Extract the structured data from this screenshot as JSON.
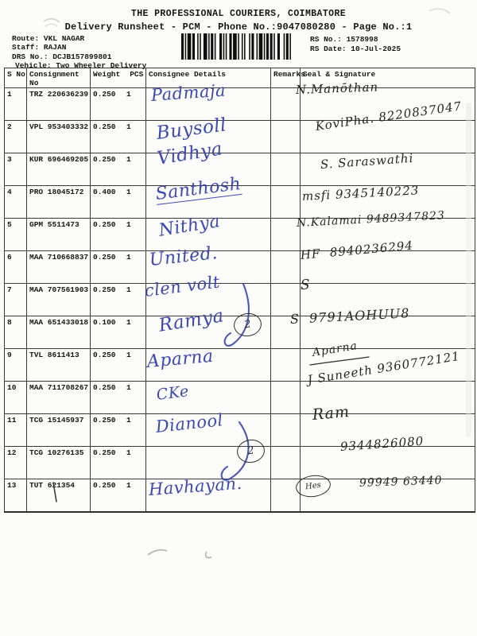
{
  "document": {
    "title": "THE PROFESSIONAL COURIERS, COIMBATORE",
    "subtitle": "Delivery Runsheet - PCM - Phone No.:9047080280 - Page No.:1",
    "route": "Route: VKL NAGAR",
    "staff": "Staff: RAJAN",
    "drs_no": "DRS No.: DCJB157899801",
    "vehicle": "Vehicle: Two Wheeler Delivery",
    "rs_no": "RS No.: 1578998",
    "rs_date": "RS Date: 10-Jul-2025"
  },
  "table": {
    "headers": {
      "s_no": "S No",
      "consignment_no": "Consignment No",
      "weight": "Weight",
      "pcs": "PCS",
      "consignee": "Consignee Details",
      "remarks": "Remarks",
      "seal": "Seal & Signature"
    },
    "rows": [
      {
        "s_no": "1",
        "consignment_no": "TRZ 220636239",
        "weight": "0.250",
        "pcs": "1",
        "consignee_handwriting": "Padmaja",
        "remark_handwriting": "",
        "signature_handwriting": "N.Manōthan"
      },
      {
        "s_no": "2",
        "consignment_no": "VPL 953403332",
        "weight": "0.250",
        "pcs": "1",
        "consignee_handwriting": "Buysoll",
        "remark_handwriting": "",
        "signature_handwriting": "KoviPha. 8220837047"
      },
      {
        "s_no": "3",
        "consignment_no": "KUR 696469205",
        "weight": "0.250",
        "pcs": "1",
        "consignee_handwriting": "Vidhya",
        "remark_handwriting": "",
        "signature_handwriting": "S. Saraswathi"
      },
      {
        "s_no": "4",
        "consignment_no": "PRO 18045172",
        "weight": "0.400",
        "pcs": "1",
        "consignee_handwriting": "Santhosh",
        "remark_handwriting": "",
        "signature_handwriting": "msfi 9345140223"
      },
      {
        "s_no": "5",
        "consignment_no": "GPM 5511473",
        "weight": "0.250",
        "pcs": "1",
        "consignee_handwriting": "Nithya",
        "remark_handwriting": "",
        "signature_handwriting": "N.Kalamai 9489347823"
      },
      {
        "s_no": "6",
        "consignment_no": "MAA 710668837",
        "weight": "0.250",
        "pcs": "1",
        "consignee_handwriting": "United.",
        "remark_handwriting": "",
        "signature_handwriting": "HF  8940236294"
      },
      {
        "s_no": "7",
        "consignment_no": "MAA 707561903",
        "weight": "0.250",
        "pcs": "1",
        "consignee_handwriting": "clen volt",
        "remark_handwriting": "",
        "signature_handwriting": "S"
      },
      {
        "s_no": "8",
        "consignment_no": "MAA 651433018",
        "weight": "0.100",
        "pcs": "1",
        "consignee_handwriting": "Ramya",
        "remark_handwriting": "2",
        "signature_handwriting": "S  9791AOHUU8"
      },
      {
        "s_no": "9",
        "consignment_no": "TVL 8611413",
        "weight": "0.250",
        "pcs": "1",
        "consignee_handwriting": "Aparna",
        "remark_handwriting": "",
        "signature_handwriting": "Aparna"
      },
      {
        "s_no": "10",
        "consignment_no": "MAA 711708267",
        "weight": "0.250",
        "pcs": "1",
        "consignee_handwriting": "CKe",
        "remark_handwriting": "",
        "signature_handwriting": "J Suneeth 9360772121"
      },
      {
        "s_no": "11",
        "consignment_no": "TCG 15145937",
        "weight": "0.250",
        "pcs": "1",
        "consignee_handwriting": "Dianool",
        "remark_handwriting": "",
        "signature_handwriting": "Ram"
      },
      {
        "s_no": "12",
        "consignment_no": "TCG 10276135",
        "weight": "0.250",
        "pcs": "1",
        "consignee_handwriting": "",
        "remark_handwriting": "2",
        "signature_handwriting": "9344826080"
      },
      {
        "s_no": "13",
        "consignment_no": "TUT 621354",
        "weight": "0.250",
        "pcs": "1",
        "consignee_handwriting": "Havhayan.",
        "remark_handwriting": "",
        "signature_handwriting": "Hes 99949 63440"
      }
    ]
  },
  "ink_colors": {
    "blue_ink": "#3b49b4",
    "black_ink": "#26261f",
    "pencil": "#9a9a94"
  }
}
